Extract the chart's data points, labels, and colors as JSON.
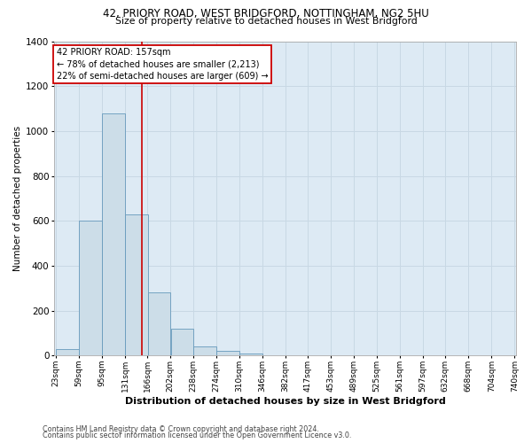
{
  "title1": "42, PRIORY ROAD, WEST BRIDGFORD, NOTTINGHAM, NG2 5HU",
  "title2": "Size of property relative to detached houses in West Bridgford",
  "xlabel": "Distribution of detached houses by size in West Bridgford",
  "ylabel": "Number of detached properties",
  "bin_labels": [
    "23sqm",
    "59sqm",
    "95sqm",
    "131sqm",
    "166sqm",
    "202sqm",
    "238sqm",
    "274sqm",
    "310sqm",
    "346sqm",
    "382sqm",
    "417sqm",
    "453sqm",
    "489sqm",
    "525sqm",
    "561sqm",
    "597sqm",
    "632sqm",
    "668sqm",
    "704sqm",
    "740sqm"
  ],
  "bar_heights": [
    30,
    600,
    1080,
    630,
    280,
    120,
    40,
    20,
    10,
    2,
    1,
    0,
    0,
    0,
    0,
    0,
    0,
    0,
    0,
    0
  ],
  "bar_color": "#ccdde8",
  "bar_edge_color": "#6699bb",
  "grid_color": "#c8d8e4",
  "bg_color": "#ddeaf4",
  "vline_color": "#cc0000",
  "vline_x": 157,
  "property_label": "42 PRIORY ROAD: 157sqm",
  "annotation_line1": "← 78% of detached houses are smaller (2,213)",
  "annotation_line2": "22% of semi-detached houses are larger (609) →",
  "bin_starts": [
    23,
    59,
    95,
    131,
    166,
    202,
    238,
    274,
    310,
    346,
    382,
    417,
    453,
    489,
    525,
    561,
    597,
    632,
    668,
    704
  ],
  "bin_width": 36,
  "ylim": [
    0,
    1400
  ],
  "yticks": [
    0,
    200,
    400,
    600,
    800,
    1000,
    1200,
    1400
  ],
  "footnote1": "Contains HM Land Registry data © Crown copyright and database right 2024.",
  "footnote2": "Contains public sector information licensed under the Open Government Licence v3.0."
}
